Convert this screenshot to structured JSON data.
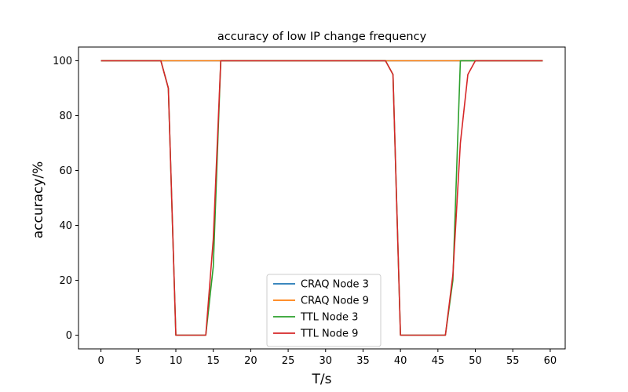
{
  "chart_data": {
    "type": "line",
    "title": "accuracy of low IP change frequency",
    "xlabel": "T/s",
    "ylabel": "accuracy/%",
    "xlim": [
      -3,
      62
    ],
    "ylim": [
      -5,
      105
    ],
    "xticks": [
      "0",
      "5",
      "10",
      "15",
      "20",
      "25",
      "30",
      "35",
      "40",
      "45",
      "50",
      "55",
      "60"
    ],
    "yticks": [
      "0",
      "20",
      "40",
      "60",
      "80",
      "100"
    ],
    "grid": false,
    "legend_position": "lower center",
    "series": [
      {
        "name": "CRAQ Node 3",
        "color": "#1f77b4",
        "x": [
          0,
          59
        ],
        "y": [
          100,
          100
        ]
      },
      {
        "name": "CRAQ Node 9",
        "color": "#ff7f0e",
        "x": [
          0,
          59
        ],
        "y": [
          100,
          100
        ]
      },
      {
        "name": "TTL Node 3",
        "color": "#2ca02c",
        "x": [
          0,
          8,
          9,
          10,
          11,
          12,
          13,
          14,
          15,
          16,
          17,
          38,
          39,
          40,
          41,
          42,
          43,
          44,
          45,
          46,
          47,
          48,
          49,
          50,
          59
        ],
        "y": [
          100,
          100,
          90,
          0,
          0,
          0,
          0,
          0,
          25,
          100,
          100,
          100,
          95,
          0,
          0,
          0,
          0,
          0,
          0,
          0,
          20,
          100,
          100,
          100,
          100
        ]
      },
      {
        "name": "TTL Node 9",
        "color": "#d62728",
        "x": [
          0,
          8,
          9,
          10,
          11,
          12,
          13,
          14,
          15,
          16,
          17,
          38,
          39,
          40,
          41,
          42,
          43,
          44,
          45,
          46,
          47,
          48,
          49,
          50,
          59
        ],
        "y": [
          100,
          100,
          90,
          0,
          0,
          0,
          0,
          0,
          35,
          100,
          100,
          100,
          95,
          0,
          0,
          0,
          0,
          0,
          0,
          0,
          22,
          70,
          95,
          100,
          100
        ]
      }
    ]
  }
}
